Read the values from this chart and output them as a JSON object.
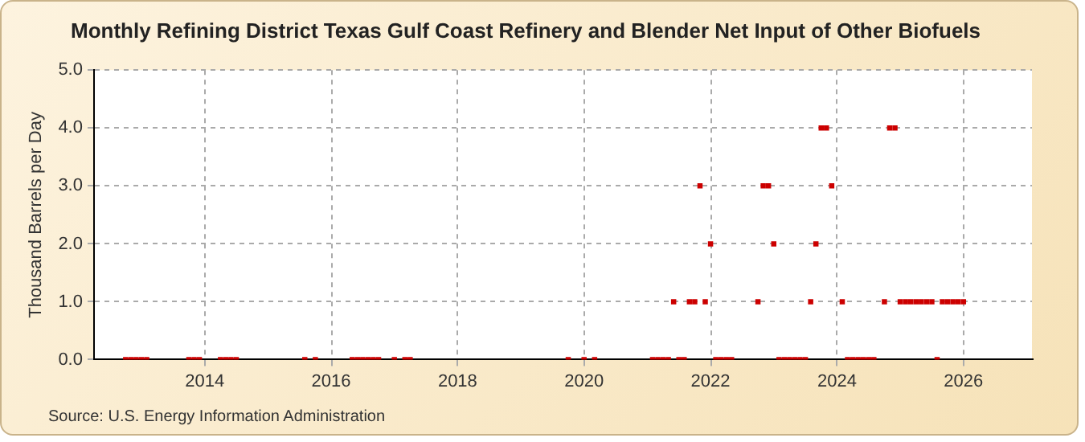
{
  "chart_data": {
    "type": "scatter",
    "title": "Monthly Refining District Texas Gulf Coast Refinery and Blender Net Input of Other Biofuels",
    "ylabel": "Thousand Barrels per Day",
    "annotations": [
      "Source: U.S. Energy Information Administration"
    ],
    "series": [
      {
        "color": "#cc0000",
        "x": [
          "2012-10",
          "2012-11",
          "2012-12",
          "2013-01",
          "2013-02",
          "2013-10",
          "2013-11",
          "2013-12",
          "2014-04",
          "2014-05",
          "2014-06",
          "2014-07",
          "2015-08",
          "2015-10",
          "2016-05",
          "2016-06",
          "2016-07",
          "2016-08",
          "2016-09",
          "2016-10",
          "2017-01",
          "2017-03",
          "2017-04",
          "2019-10",
          "2020-01",
          "2020-03",
          "2021-02",
          "2021-03",
          "2021-04",
          "2021-05",
          "2021-06",
          "2021-07",
          "2021-08",
          "2021-09",
          "2021-10",
          "2021-11",
          "2021-12",
          "2022-01",
          "2022-02",
          "2022-03",
          "2022-04",
          "2022-05",
          "2022-10",
          "2022-11",
          "2022-12",
          "2023-01",
          "2023-02",
          "2023-03",
          "2023-04",
          "2023-05",
          "2023-06",
          "2023-07",
          "2023-08",
          "2023-09",
          "2023-10",
          "2023-11",
          "2023-12",
          "2024-02",
          "2024-03",
          "2024-04",
          "2024-05",
          "2024-06",
          "2024-07",
          "2024-08",
          "2024-10",
          "2024-11",
          "2024-12",
          "2025-01",
          "2025-02",
          "2025-03",
          "2025-04",
          "2025-05",
          "2025-06",
          "2025-07",
          "2025-08",
          "2025-09",
          "2025-10",
          "2025-11",
          "2025-12",
          "2026-01"
        ],
        "values": [
          0,
          0,
          0,
          0,
          0,
          0,
          0,
          0,
          0,
          0,
          0,
          0,
          0,
          0,
          0,
          0,
          0,
          0,
          0,
          0,
          0,
          0,
          0,
          0,
          0,
          0,
          0,
          0,
          0,
          0,
          1,
          0,
          0,
          1,
          1,
          3,
          1,
          2,
          0,
          0,
          0,
          0,
          1,
          3,
          3,
          2,
          0,
          0,
          0,
          0,
          0,
          0,
          1,
          2,
          4,
          4,
          3,
          1,
          0,
          0,
          0,
          0,
          0,
          0,
          1,
          4,
          4,
          1,
          1,
          1,
          1,
          1,
          1,
          1,
          0,
          1,
          1,
          1,
          1,
          1
        ]
      }
    ],
    "xlim": [
      "2012-04",
      "2027-02"
    ],
    "xticks": [
      "2014",
      "2016",
      "2018",
      "2020",
      "2022",
      "2024",
      "2026"
    ],
    "ylim": [
      0,
      5
    ],
    "yticks": [
      {
        "value": 0,
        "label": "0.0"
      },
      {
        "value": 1,
        "label": "1.0"
      },
      {
        "value": 2,
        "label": "2.0"
      },
      {
        "value": 3,
        "label": "3.0"
      },
      {
        "value": 4,
        "label": "4.0"
      },
      {
        "value": 5,
        "label": "5.0"
      }
    ],
    "grid": true,
    "legend": false,
    "marker": "square"
  }
}
